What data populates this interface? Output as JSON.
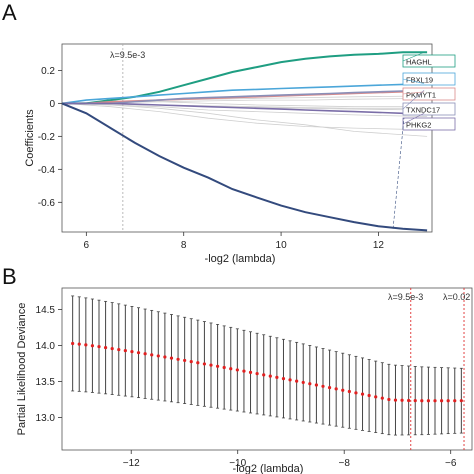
{
  "panels": [
    {
      "id": "A",
      "label": "A"
    },
    {
      "id": "B",
      "label": "B"
    }
  ],
  "chart_data": [
    {
      "panel": "A",
      "type": "line",
      "xlabel": "-log2 (lambda)",
      "ylabel": "Coefficients",
      "xlim": [
        5.5,
        13.1
      ],
      "ylim": [
        -0.78,
        0.36
      ],
      "xticks": [
        6,
        8,
        10,
        12
      ],
      "yticks": [
        0.2,
        0,
        -0.2,
        -0.4,
        -0.6
      ],
      "ytick_labels": [
        "0.2",
        "0",
        "-0.2",
        "-0.4",
        "-0.6"
      ],
      "lambda_marker": {
        "x": 6.75,
        "label": "λ=9.5e-3"
      },
      "grid": false,
      "legend_placement": "right-labels",
      "series": [
        {
          "name": "HAGHL",
          "color": "#1f9e82",
          "x": [
            5.5,
            6.0,
            6.5,
            7.0,
            7.5,
            8.0,
            8.5,
            9.0,
            9.5,
            10.0,
            10.5,
            11.0,
            11.5,
            12.0,
            12.5,
            13.0
          ],
          "y": [
            0.0,
            0.0,
            0.02,
            0.04,
            0.07,
            0.11,
            0.15,
            0.19,
            0.22,
            0.25,
            0.27,
            0.285,
            0.295,
            0.3,
            0.31,
            0.31
          ]
        },
        {
          "name": "FBXL19",
          "color": "#4ba6d9",
          "x": [
            5.5,
            6.0,
            6.5,
            7.0,
            7.5,
            8.0,
            8.5,
            9.0,
            9.5,
            10.0,
            10.5,
            11.0,
            11.5,
            12.0,
            12.5,
            13.0
          ],
          "y": [
            0.0,
            0.02,
            0.03,
            0.04,
            0.05,
            0.06,
            0.07,
            0.08,
            0.085,
            0.09,
            0.095,
            0.1,
            0.105,
            0.11,
            0.115,
            0.12
          ]
        },
        {
          "name": "PKMYT1",
          "color": "#d98b8b",
          "x": [
            5.5,
            6.0,
            6.5,
            7.0,
            7.5,
            8.0,
            8.5,
            9.0,
            9.5,
            10.0,
            10.5,
            11.0,
            11.5,
            12.0,
            12.5,
            13.0
          ],
          "y": [
            0.0,
            0.0,
            0.01,
            0.015,
            0.02,
            0.025,
            0.03,
            0.035,
            0.04,
            0.045,
            0.05,
            0.055,
            0.06,
            0.065,
            0.07,
            0.07
          ]
        },
        {
          "name": "TXNDC17",
          "color": "#8a8fb8",
          "x": [
            5.5,
            6.0,
            6.5,
            7.0,
            7.5,
            8.0,
            8.5,
            9.0,
            9.5,
            10.0,
            10.5,
            11.0,
            11.5,
            12.0,
            12.5,
            13.0
          ],
          "y": [
            0.0,
            0.0,
            0.0,
            0.01,
            0.02,
            0.03,
            0.035,
            0.04,
            0.045,
            0.05,
            0.055,
            0.06,
            0.065,
            0.07,
            0.075,
            0.08
          ]
        },
        {
          "name": "PHKG2",
          "color": "#7b6ea8",
          "x": [
            5.5,
            6.0,
            6.5,
            7.0,
            7.5,
            8.0,
            8.5,
            9.0,
            9.5,
            10.0,
            10.5,
            11.0,
            11.5,
            12.0,
            12.5,
            13.0
          ],
          "y": [
            0.0,
            0.0,
            0.0,
            -0.005,
            -0.01,
            -0.015,
            -0.02,
            -0.025,
            -0.03,
            -0.035,
            -0.04,
            -0.045,
            -0.05,
            -0.055,
            -0.06,
            -0.06
          ]
        },
        {
          "name": "",
          "color": "#334a7d",
          "x": [
            5.5,
            6.0,
            6.5,
            7.0,
            7.5,
            8.0,
            8.5,
            9.0,
            9.5,
            10.0,
            10.5,
            11.0,
            11.5,
            12.0,
            12.5,
            13.0
          ],
          "y": [
            0.0,
            -0.06,
            -0.15,
            -0.24,
            -0.32,
            -0.39,
            -0.45,
            -0.52,
            -0.57,
            -0.62,
            -0.66,
            -0.69,
            -0.72,
            -0.745,
            -0.76,
            -0.77
          ]
        }
      ],
      "background_lines": [
        [
          0.0,
          0.01,
          0.02,
          0.025,
          0.03,
          0.035,
          0.04,
          0.045
        ],
        [
          0.0,
          -0.005,
          -0.01,
          -0.02,
          -0.025,
          -0.03,
          -0.035,
          -0.04
        ],
        [
          0.0,
          0.005,
          0.01,
          0.015,
          0.02,
          0.02,
          0.025,
          0.03
        ],
        [
          0.0,
          -0.01,
          -0.02,
          -0.04,
          -0.05,
          -0.06,
          -0.07,
          -0.08
        ],
        [
          0.0,
          -0.02,
          -0.05,
          -0.09,
          -0.12,
          -0.14,
          -0.15,
          -0.16
        ],
        [
          0.0,
          0.0,
          -0.01,
          -0.015,
          -0.02,
          -0.025,
          -0.03,
          -0.03
        ],
        [
          0.0,
          0.005,
          0.01,
          0.0,
          -0.01,
          -0.015,
          -0.02,
          -0.02
        ],
        [
          0.0,
          -0.01,
          -0.03,
          -0.06,
          -0.1,
          -0.13,
          -0.17,
          -0.2
        ]
      ],
      "background_x": [
        5.5,
        6.5,
        7.5,
        8.5,
        9.5,
        10.5,
        11.5,
        13.0
      ]
    },
    {
      "panel": "B",
      "type": "scatter",
      "xlabel": "-log2 (lambda)",
      "ylabel": "Partial Likelihood Deviance",
      "xlim": [
        -13.3,
        -5.6
      ],
      "ylim": [
        12.55,
        14.8
      ],
      "xticks": [
        -12,
        -10,
        -8,
        -6
      ],
      "xtick_labels": [
        "−12",
        "−10",
        "−8",
        "−6"
      ],
      "yticks": [
        13.0,
        13.5,
        14.0,
        14.5
      ],
      "ytick_labels": [
        "13.0",
        "13.5",
        "14.0",
        "14.5"
      ],
      "grid": false,
      "lambda_lines": [
        {
          "x": -6.75,
          "label": "λ=9.5e-3"
        },
        {
          "x": -5.75,
          "label": "λ=0.02"
        }
      ],
      "x_start": -13.1,
      "x_end": -5.8,
      "n_points": 60,
      "mean_start": 14.03,
      "mean_end": 13.22,
      "err_start": 0.66,
      "err_end": 0.45,
      "point_color": "#e02020",
      "errorbar_color": "#444444"
    }
  ]
}
